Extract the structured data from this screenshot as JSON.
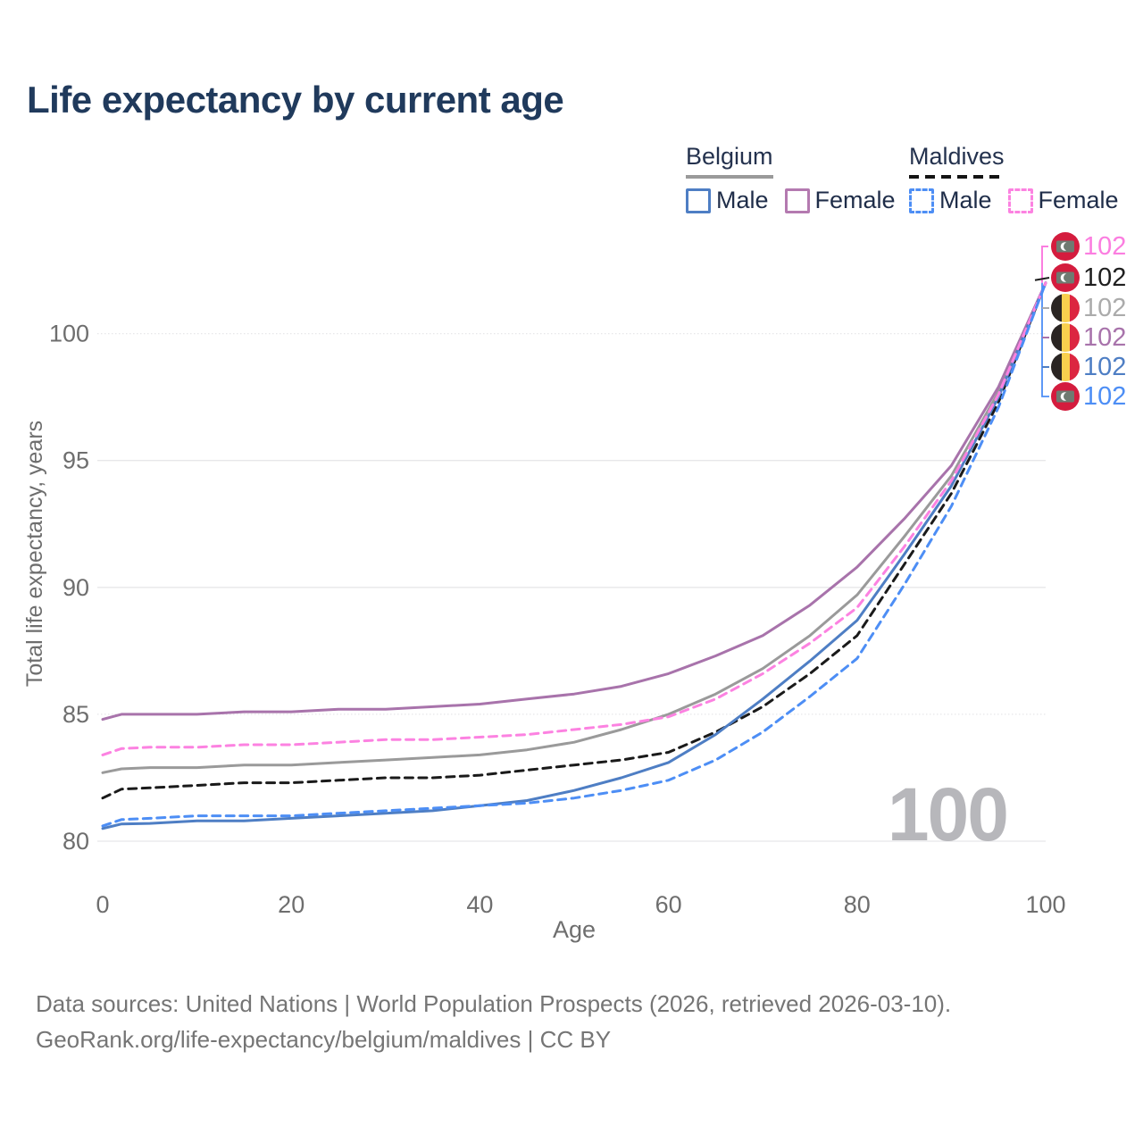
{
  "title": "Life expectancy by current age",
  "legend": {
    "groups": [
      {
        "country": "Belgium",
        "underline": "solid",
        "underline_color": "#9a9a9a",
        "items": [
          {
            "label": "Male",
            "color": "#4e7ec4",
            "dashed": false
          },
          {
            "label": "Female",
            "color": "#b47ab0",
            "dashed": false
          }
        ]
      },
      {
        "country": "Maldives",
        "underline": "dashed",
        "underline_color": "#141414",
        "items": [
          {
            "label": "Male",
            "color": "#4d8ef5",
            "dashed": true
          },
          {
            "label": "Female",
            "color": "#fc82e1",
            "dashed": true
          }
        ]
      }
    ]
  },
  "chart_data": {
    "type": "line",
    "title": "Life expectancy by current age",
    "xlabel": "Age",
    "ylabel": "Total life expectancy, years",
    "xlim": [
      0,
      100
    ],
    "ylim": [
      80,
      102
    ],
    "x_ticks": [
      0,
      20,
      40,
      60,
      80,
      100
    ],
    "y_ticks": [
      80,
      85,
      90,
      95,
      100
    ],
    "grid": "horizontal",
    "legend_position": "top-right",
    "x": [
      0,
      2,
      5,
      10,
      15,
      20,
      25,
      30,
      35,
      40,
      45,
      50,
      55,
      60,
      65,
      70,
      75,
      80,
      85,
      90,
      95,
      100
    ],
    "series": [
      {
        "id": "belgium-both",
        "name": "Belgium (both sexes)",
        "country": "Belgium",
        "sex": "Both",
        "color": "#9a9a9a",
        "dashed": false,
        "values": [
          82.7,
          82.85,
          82.9,
          82.9,
          83.0,
          83.0,
          83.1,
          83.2,
          83.3,
          83.4,
          83.6,
          83.9,
          84.4,
          85.0,
          85.8,
          86.8,
          88.1,
          89.7,
          92.0,
          94.4,
          97.7,
          102
        ]
      },
      {
        "id": "belgium-female",
        "name": "Belgium Female",
        "country": "Belgium",
        "sex": "Female",
        "color": "#a873ab",
        "dashed": false,
        "values": [
          84.8,
          85.0,
          85.0,
          85.0,
          85.1,
          85.1,
          85.2,
          85.2,
          85.3,
          85.4,
          85.6,
          85.8,
          86.1,
          86.6,
          87.3,
          88.1,
          89.3,
          90.8,
          92.7,
          94.8,
          97.9,
          102
        ]
      },
      {
        "id": "maldives-both",
        "name": "Maldives (both sexes)",
        "country": "Maldives",
        "sex": "Both",
        "color": "#1a1a1a",
        "dashed": true,
        "values": [
          81.7,
          82.05,
          82.1,
          82.2,
          82.3,
          82.3,
          82.4,
          82.5,
          82.5,
          82.6,
          82.8,
          83.0,
          83.2,
          83.5,
          84.3,
          85.3,
          86.6,
          88.1,
          90.9,
          93.7,
          97.3,
          102
        ]
      },
      {
        "id": "belgium-male",
        "name": "Belgium Male",
        "country": "Belgium",
        "sex": "Male",
        "color": "#4e7ec4",
        "dashed": false,
        "values": [
          80.5,
          80.68,
          80.7,
          80.8,
          80.8,
          80.9,
          81.0,
          81.1,
          81.2,
          81.4,
          81.6,
          82.0,
          82.5,
          83.1,
          84.2,
          85.6,
          87.1,
          88.7,
          91.3,
          94.0,
          97.5,
          102
        ]
      },
      {
        "id": "maldives-female",
        "name": "Maldives Female",
        "country": "Maldives",
        "sex": "Female",
        "color": "#fc82e1",
        "dashed": true,
        "values": [
          83.4,
          83.65,
          83.7,
          83.7,
          83.8,
          83.8,
          83.9,
          84.0,
          84.0,
          84.1,
          84.2,
          84.4,
          84.6,
          84.9,
          85.6,
          86.6,
          87.8,
          89.2,
          91.6,
          94.2,
          97.6,
          102
        ]
      },
      {
        "id": "maldives-male",
        "name": "Maldives Male",
        "country": "Maldives",
        "sex": "Male",
        "color": "#4d8ef5",
        "dashed": true,
        "values": [
          80.6,
          80.85,
          80.9,
          81.0,
          81.0,
          81.0,
          81.1,
          81.2,
          81.3,
          81.4,
          81.5,
          81.7,
          82.0,
          82.4,
          83.2,
          84.3,
          85.7,
          87.2,
          90.1,
          93.2,
          97.1,
          102
        ]
      }
    ],
    "end_age": 100,
    "end_value": 102
  },
  "right_labels": [
    {
      "value": "102",
      "color": "#fb7ee0",
      "flag": "maldives",
      "series": "maldives-female"
    },
    {
      "value": "102",
      "color": "#1f1f1f",
      "flag": "maldives",
      "series": "maldives-both"
    },
    {
      "value": "102",
      "color": "#ababab",
      "flag": "belgium",
      "series": "belgium-both"
    },
    {
      "value": "102",
      "color": "#a873ab",
      "flag": "belgium",
      "series": "belgium-female"
    },
    {
      "value": "102",
      "color": "#4e7ec4",
      "flag": "belgium",
      "series": "belgium-male"
    },
    {
      "value": "102",
      "color": "#4d8ef5",
      "flag": "maldives",
      "series": "maldives-male"
    }
  ],
  "watermark": "100",
  "flag_colors": {
    "belgium": {
      "black": "#2a2523",
      "yellow": "#f8cf4e",
      "red": "#dc2640"
    },
    "maldives": {
      "red": "#d41c3e",
      "rect": "#6f7a71",
      "crescent": "#ffffff"
    }
  },
  "footer": {
    "line1": "Data sources: United Nations | World Population Prospects (2026, retrieved 2026-03-10).",
    "line2": "GeoRank.org/life-expectancy/belgium/maldives | CC BY"
  }
}
